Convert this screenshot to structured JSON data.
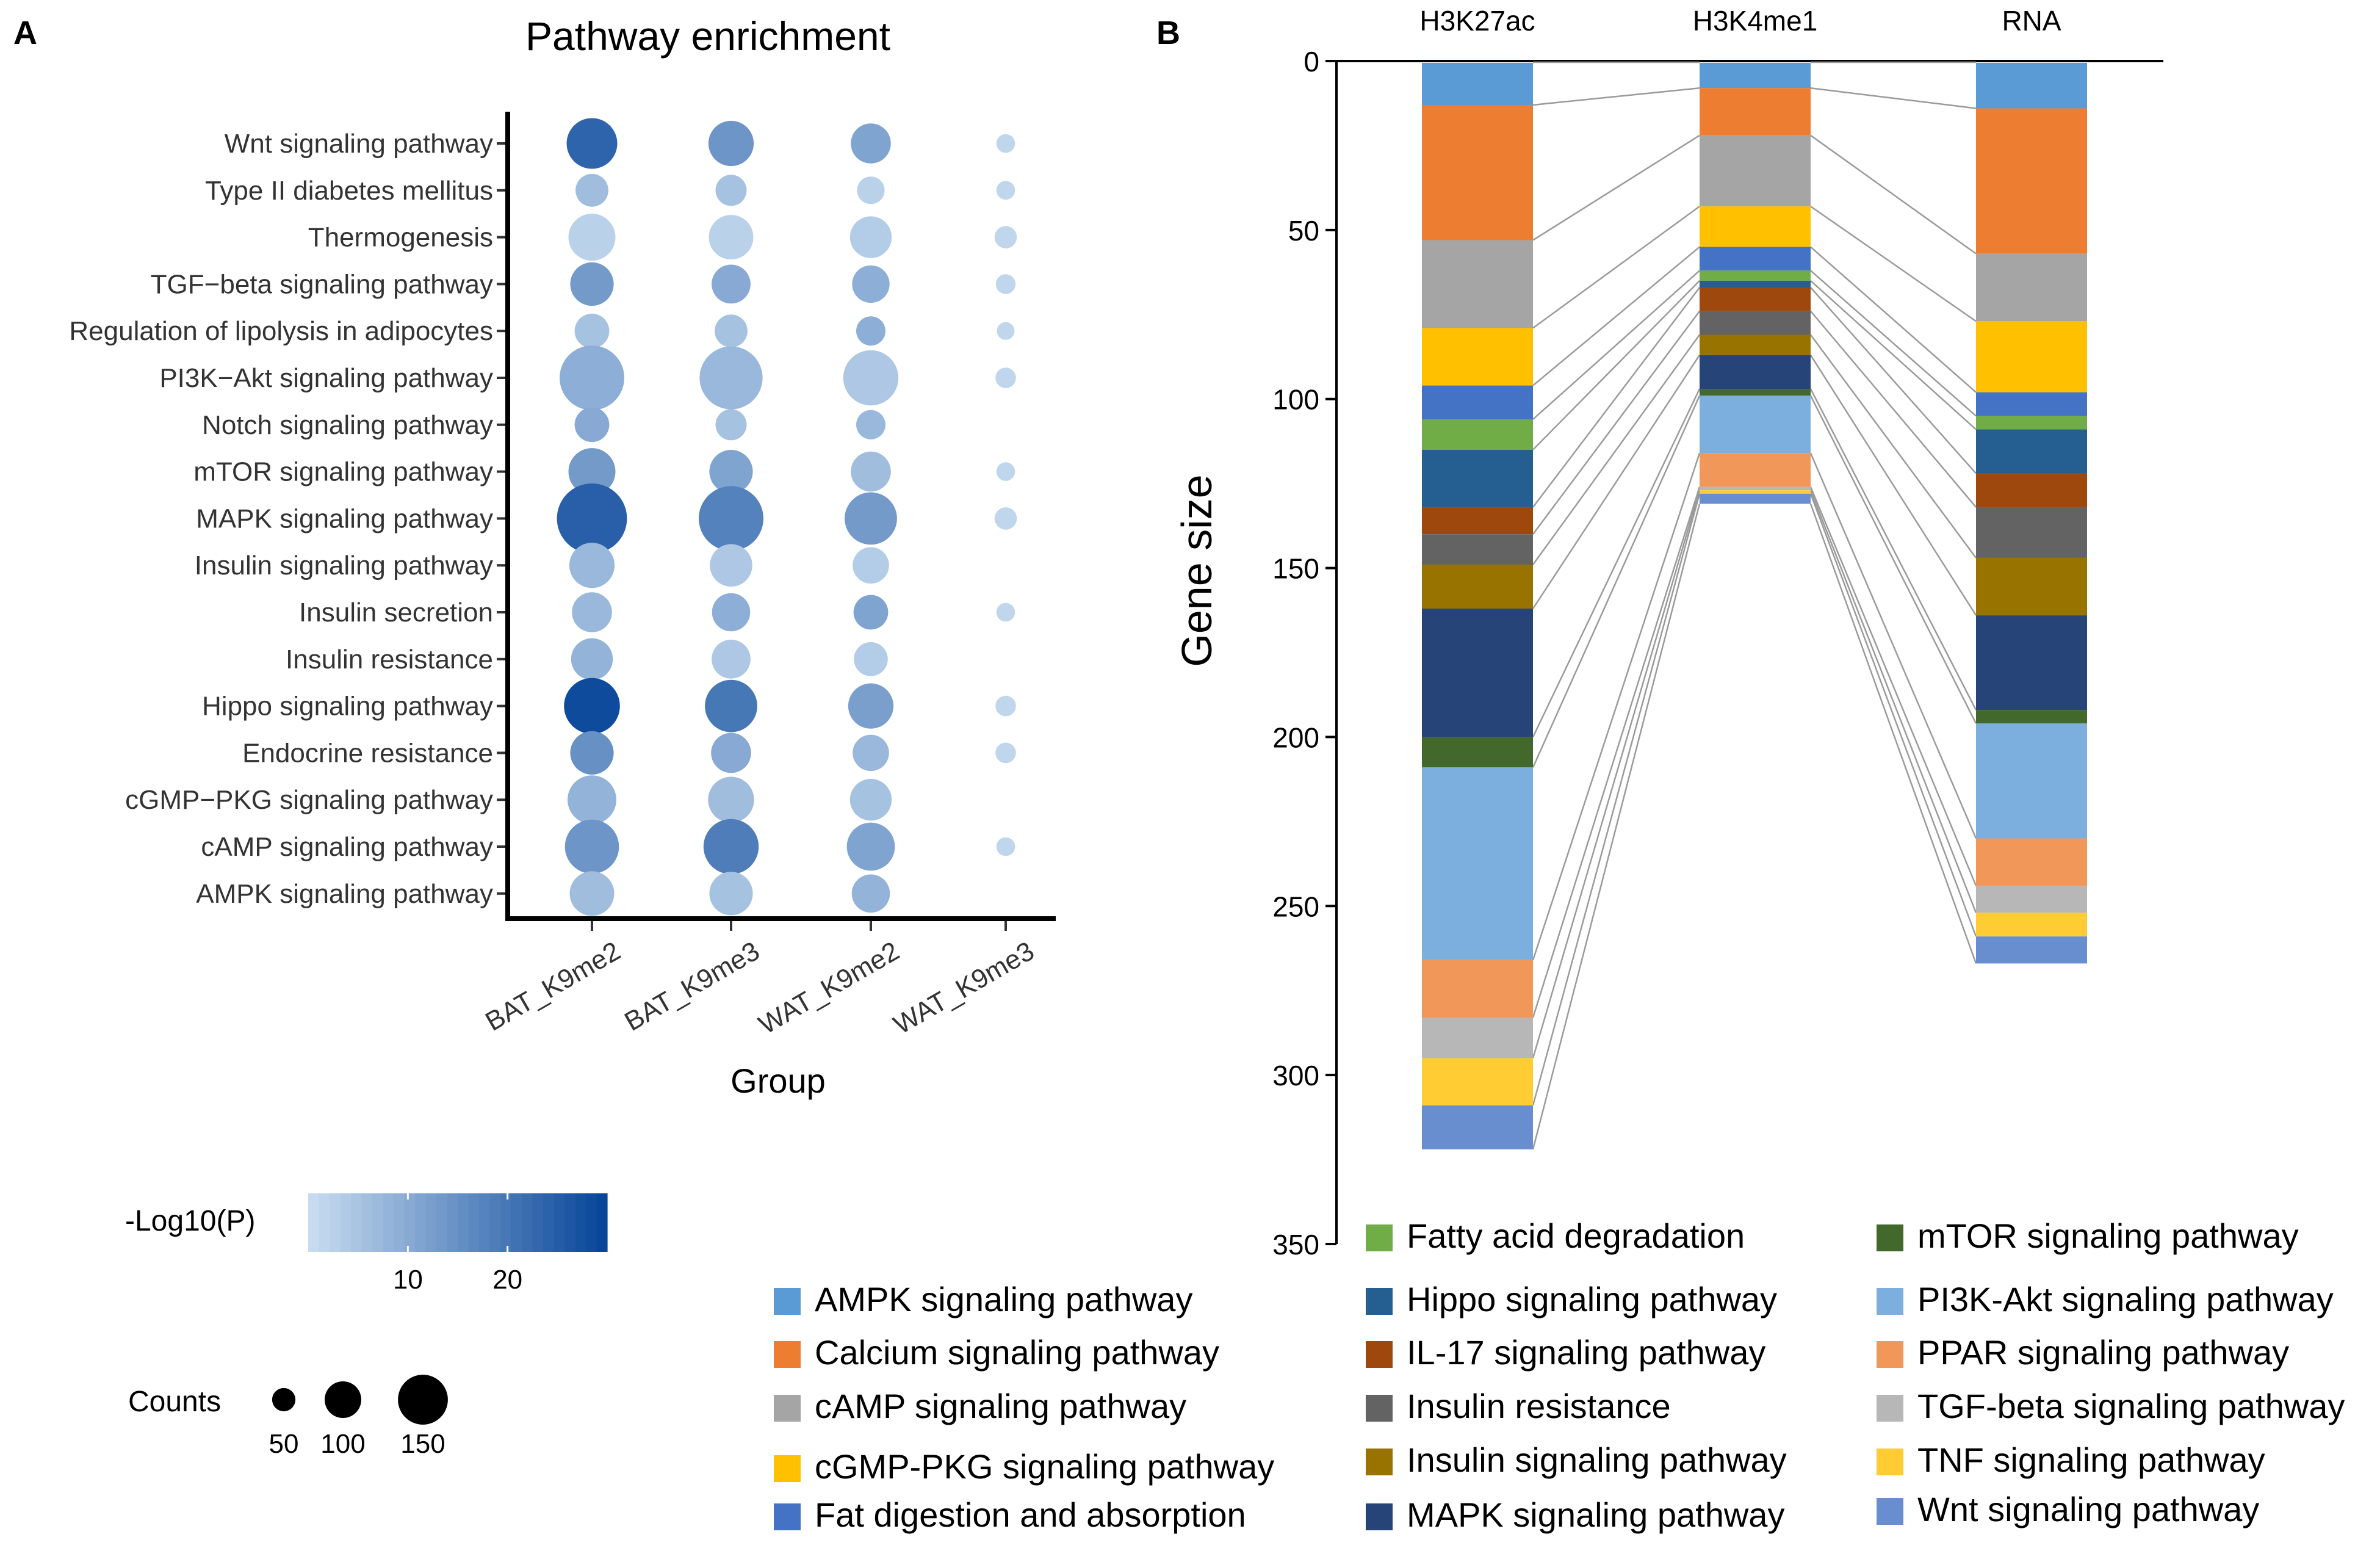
{
  "chart_data": [
    {
      "panel": "A",
      "type": "scatter",
      "subtype": "dot-plot",
      "title": "Pathway enrichment",
      "xlabel": "Group",
      "ylabel": "",
      "groups": [
        "BAT_K9me2",
        "BAT_K9me3",
        "WAT_K9me2",
        "WAT_K9me3"
      ],
      "pathways": [
        "Wnt signaling pathway",
        "Type II diabetes mellitus",
        "Thermogenesis",
        "TGF−beta signaling pathway",
        "Regulation of lipolysis in adipocytes",
        "PI3K−Akt signaling pathway",
        "Notch signaling pathway",
        "mTOR signaling pathway",
        "MAPK signaling pathway",
        "Insulin signaling pathway",
        "Insulin secretion",
        "Insulin resistance",
        "Hippo signaling pathway",
        "Endocrine resistance",
        "cGMP−PKG signaling pathway",
        "cAMP signaling pathway",
        "AMPK signaling pathway"
      ],
      "counts": [
        [
          105,
          90,
          75,
          15
        ],
        [
          55,
          50,
          40,
          15
        ],
        [
          95,
          88,
          80,
          25
        ],
        [
          85,
          72,
          68,
          18
        ],
        [
          60,
          55,
          45,
          12
        ],
        [
          145,
          140,
          118,
          20
        ],
        [
          60,
          50,
          45,
          0
        ],
        [
          95,
          85,
          75,
          15
        ],
        [
          160,
          145,
          110,
          25
        ],
        [
          90,
          82,
          65,
          0
        ],
        [
          75,
          70,
          60,
          15
        ],
        [
          80,
          72,
          58,
          0
        ],
        [
          120,
          110,
          90,
          20
        ],
        [
          85,
          75,
          65,
          20
        ],
        [
          100,
          92,
          80,
          0
        ],
        [
          115,
          118,
          98,
          15
        ],
        [
          88,
          85,
          70,
          0
        ]
      ],
      "neglog10p": [
        [
          24,
          14,
          11,
          1
        ],
        [
          6,
          5,
          2,
          1
        ],
        [
          2,
          2,
          3,
          1
        ],
        [
          13,
          10,
          9,
          1
        ],
        [
          5,
          5,
          9,
          1
        ],
        [
          9,
          7,
          4,
          1
        ],
        [
          10,
          5,
          7,
          0
        ],
        [
          13,
          11,
          6,
          1
        ],
        [
          25,
          18,
          13,
          1
        ],
        [
          7,
          4,
          3,
          0
        ],
        [
          7,
          9,
          11,
          1
        ],
        [
          8,
          4,
          3,
          0
        ],
        [
          29,
          20,
          12,
          1
        ],
        [
          15,
          10,
          7,
          1
        ],
        [
          8,
          6,
          5,
          0
        ],
        [
          14,
          19,
          11,
          1
        ],
        [
          6,
          5,
          8,
          0
        ]
      ],
      "color_legend": {
        "title": "-Log10(P)",
        "ticks": [
          10,
          20
        ],
        "range": [
          0,
          30
        ],
        "low_color": "#c6dbef",
        "high_color": "#08469a"
      },
      "size_legend": {
        "title": "Counts",
        "values": [
          50,
          100,
          150
        ]
      }
    },
    {
      "panel": "B",
      "type": "bar",
      "subtype": "stacked-alluvial",
      "ylabel": "Gene size",
      "ylim": [
        0,
        350
      ],
      "yticks": [
        0,
        50,
        100,
        150,
        200,
        250,
        300,
        350
      ],
      "y_inverted": true,
      "categories": [
        "H3K27ac",
        "H3K4me1",
        "RNA"
      ],
      "series": [
        {
          "name": "AMPK signaling pathway",
          "color": "#5b9bd5",
          "values": [
            13,
            8,
            14
          ]
        },
        {
          "name": "Calcium signaling pathway",
          "color": "#ed7d31",
          "values": [
            40,
            14,
            43
          ]
        },
        {
          "name": "cAMP signaling pathway",
          "color": "#a5a5a5",
          "values": [
            26,
            21,
            20
          ]
        },
        {
          "name": "cGMP-PKG signaling pathway",
          "color": "#ffc000",
          "values": [
            17,
            12,
            21
          ]
        },
        {
          "name": "Fat digestion and absorption",
          "color": "#4472c4",
          "values": [
            10,
            7,
            7
          ]
        },
        {
          "name": "Fatty acid degradation",
          "color": "#70ad47",
          "values": [
            9,
            3,
            4
          ]
        },
        {
          "name": "Hippo signaling pathway",
          "color": "#255e91",
          "values": [
            17,
            2,
            13
          ]
        },
        {
          "name": "IL-17 signaling pathway",
          "color": "#9e480e",
          "values": [
            8,
            7,
            10
          ]
        },
        {
          "name": "Insulin resistance",
          "color": "#636363",
          "values": [
            9,
            7,
            15
          ]
        },
        {
          "name": "Insulin signaling pathway",
          "color": "#997300",
          "values": [
            13,
            6,
            17
          ]
        },
        {
          "name": "MAPK signaling pathway",
          "color": "#264478",
          "values": [
            38,
            10,
            28
          ]
        },
        {
          "name": "mTOR signaling pathway",
          "color": "#43682b",
          "values": [
            9,
            2,
            4
          ]
        },
        {
          "name": "PI3K-Akt signaling pathway",
          "color": "#7cafdd",
          "values": [
            57,
            17,
            34
          ]
        },
        {
          "name": "PPAR signaling pathway",
          "color": "#f1975a",
          "values": [
            17,
            10,
            14
          ]
        },
        {
          "name": "TGF-beta signaling pathway",
          "color": "#b7b7b7",
          "values": [
            12,
            1,
            8
          ]
        },
        {
          "name": "TNF signaling pathway",
          "color": "#ffcd33",
          "values": [
            14,
            1,
            7
          ]
        },
        {
          "name": "Wnt signaling pathway",
          "color": "#698ed0",
          "values": [
            13,
            3,
            8
          ]
        }
      ]
    }
  ],
  "panel_labels": {
    "a": "A",
    "b": "B"
  }
}
